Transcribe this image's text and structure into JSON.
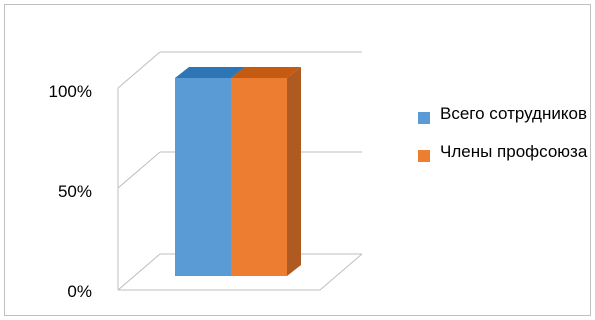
{
  "chart_data": {
    "type": "bar",
    "style": "3d-column",
    "categories": [
      ""
    ],
    "series": [
      {
        "name": "Всего сотрудников",
        "values": [
          100
        ],
        "color": "#5b9bd5",
        "side_color": "#41719c",
        "top_color": "#2e75b6"
      },
      {
        "name": "Члены профсоюза",
        "values": [
          100
        ],
        "color": "#ed7d31",
        "side_color": "#ae5a21",
        "top_color": "#c55a11"
      }
    ],
    "yticks": [
      "0%",
      "50%",
      "100%"
    ],
    "ylim": [
      0,
      100
    ],
    "grid": true,
    "legend_position": "right"
  }
}
